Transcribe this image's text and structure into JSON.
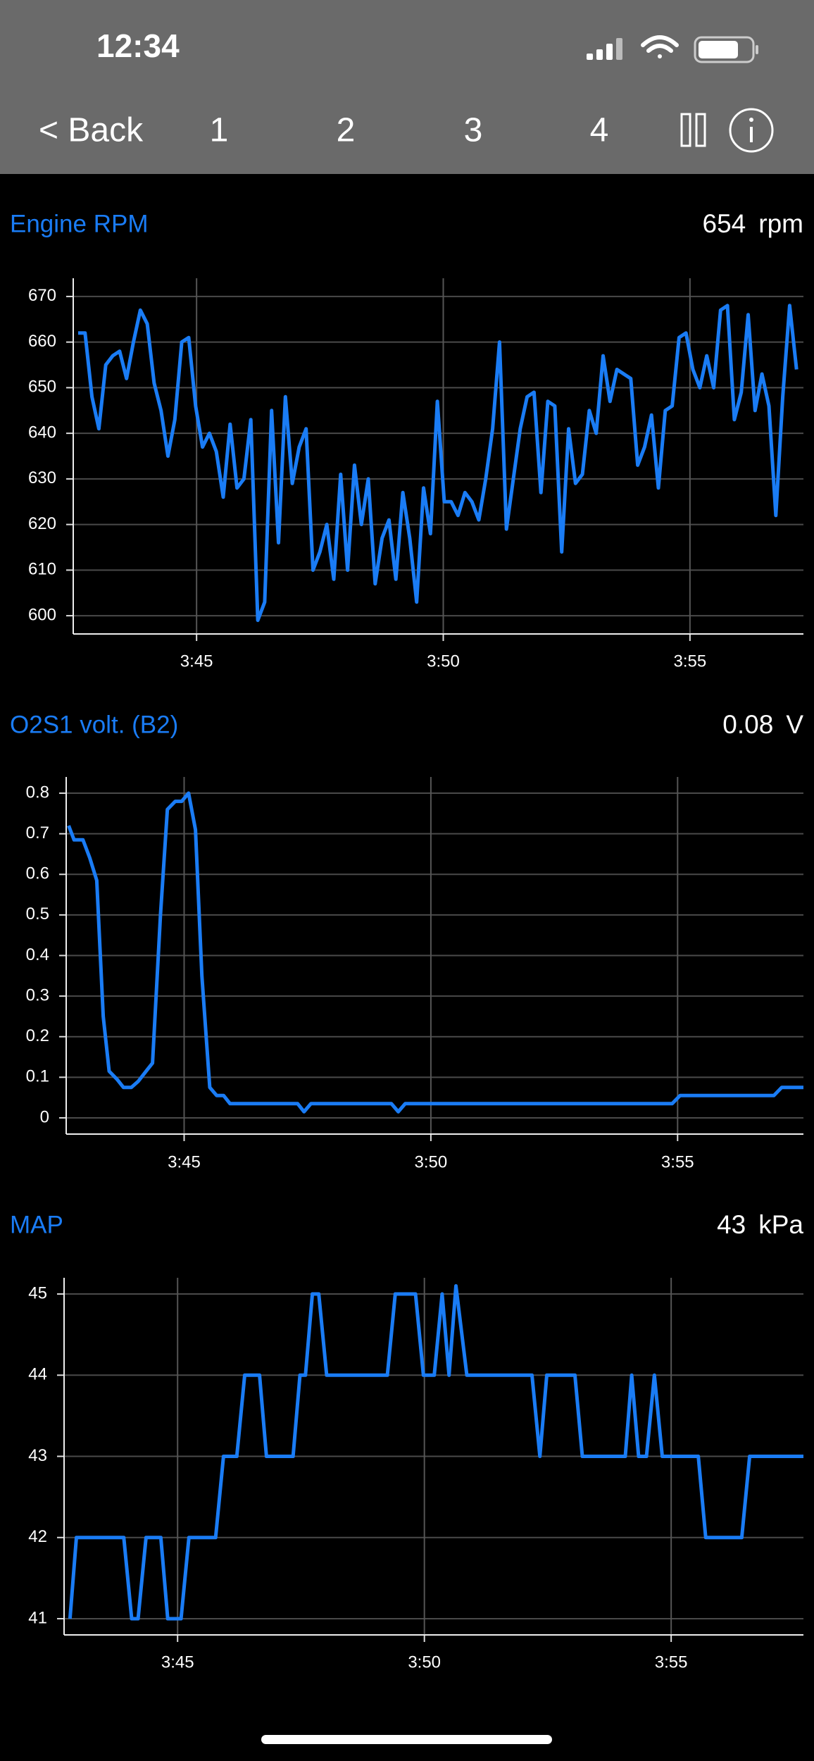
{
  "status_bar": {
    "time": "12:34"
  },
  "nav": {
    "back": "< Back",
    "tabs": [
      "1",
      "2",
      "3",
      "4"
    ]
  },
  "chart_data": [
    {
      "type": "line",
      "title": "Engine RPM",
      "current_value": 654,
      "unit": "rpm",
      "color": "#1a7cf5",
      "grid": true,
      "xlim": [
        42.5,
        57.3
      ],
      "xticks": [
        {
          "value": 45,
          "label": "3:45"
        },
        {
          "value": 50,
          "label": "3:50"
        },
        {
          "value": 55,
          "label": "3:55"
        }
      ],
      "ylim": [
        596,
        674
      ],
      "yticks": [
        600,
        610,
        620,
        630,
        640,
        650,
        660,
        670
      ],
      "x": [
        42.6,
        42.74,
        42.88,
        43.02,
        43.16,
        43.3,
        43.44,
        43.58,
        43.72,
        43.86,
        44.0,
        44.14,
        44.28,
        44.42,
        44.56,
        44.7,
        44.84,
        44.98,
        45.12,
        45.26,
        45.4,
        45.54,
        45.68,
        45.82,
        45.96,
        46.1,
        46.24,
        46.38,
        46.52,
        46.66,
        46.8,
        46.94,
        47.08,
        47.22,
        47.36,
        47.5,
        47.64,
        47.78,
        47.92,
        48.06,
        48.2,
        48.34,
        48.48,
        48.62,
        48.76,
        48.9,
        49.04,
        49.18,
        49.32,
        49.46,
        49.6,
        49.74,
        49.88,
        50.02,
        50.16,
        50.3,
        50.44,
        50.58,
        50.72,
        50.86,
        51.0,
        51.14,
        51.28,
        51.42,
        51.56,
        51.7,
        51.84,
        51.98,
        52.12,
        52.26,
        52.4,
        52.54,
        52.68,
        52.82,
        52.96,
        53.1,
        53.24,
        53.38,
        53.52,
        53.66,
        53.8,
        53.94,
        54.08,
        54.22,
        54.36,
        54.5,
        54.64,
        54.78,
        54.92,
        55.06,
        55.2,
        55.34,
        55.48,
        55.62,
        55.76,
        55.9,
        56.04,
        56.18,
        56.32,
        56.46,
        56.6,
        56.74,
        56.88,
        57.02,
        57.16
      ],
      "values": [
        662,
        662,
        648,
        641,
        655,
        657,
        658,
        652,
        660,
        667,
        664,
        651,
        645,
        635,
        643,
        660,
        661,
        646,
        637,
        640,
        636,
        626,
        642,
        628,
        630,
        643,
        599,
        603,
        645,
        616,
        648,
        629,
        637,
        641,
        610,
        614,
        620,
        608,
        631,
        610,
        633,
        620,
        630,
        607,
        617,
        621,
        608,
        627,
        617,
        603,
        628,
        618,
        647,
        625,
        625,
        622,
        627,
        625,
        621,
        630,
        641,
        660,
        619,
        630,
        641,
        648,
        649,
        627,
        647,
        646,
        614,
        641,
        629,
        631,
        645,
        640,
        657,
        647,
        654,
        653,
        652,
        633,
        637,
        644,
        628,
        645,
        646,
        661,
        662,
        654,
        650,
        657,
        650,
        667,
        668,
        643,
        649,
        666,
        645,
        653,
        646,
        622,
        648,
        668,
        654
      ]
    },
    {
      "type": "line",
      "title": "O2S1 volt. (B2)",
      "current_value": 0.08,
      "unit": "V",
      "color": "#1a7cf5",
      "grid": true,
      "xlim": [
        42.61,
        57.55
      ],
      "xticks": [
        {
          "value": 45,
          "label": "3:45"
        },
        {
          "value": 50,
          "label": "3:50"
        },
        {
          "value": 55,
          "label": "3:55"
        }
      ],
      "ylim": [
        -0.04,
        0.84
      ],
      "yticks": [
        0,
        0.1,
        0.2,
        0.3,
        0.4,
        0.5,
        0.6,
        0.7,
        0.8
      ],
      "x": [
        42.66,
        42.77,
        42.95,
        43.09,
        43.23,
        43.36,
        43.48,
        43.64,
        43.77,
        43.93,
        44.07,
        44.23,
        44.36,
        44.52,
        44.66,
        44.82,
        44.95,
        45.09,
        45.23,
        45.36,
        45.52,
        45.66,
        45.8,
        45.93,
        47.3,
        47.43,
        47.57,
        49.2,
        49.34,
        49.48,
        54.89,
        55.05,
        56.95,
        57.11,
        57.55
      ],
      "values": [
        0.72,
        0.685,
        0.685,
        0.64,
        0.585,
        0.25,
        0.115,
        0.095,
        0.075,
        0.075,
        0.09,
        0.115,
        0.135,
        0.5,
        0.76,
        0.78,
        0.78,
        0.8,
        0.71,
        0.35,
        0.075,
        0.055,
        0.055,
        0.035,
        0.035,
        0.015,
        0.035,
        0.035,
        0.015,
        0.035,
        0.035,
        0.055,
        0.055,
        0.075,
        0.075
      ]
    },
    {
      "type": "line",
      "title": "MAP",
      "current_value": 43,
      "unit": "kPa",
      "color": "#1a7cf5",
      "grid": true,
      "xlim": [
        42.7,
        57.68
      ],
      "xticks": [
        {
          "value": 45,
          "label": "3:45"
        },
        {
          "value": 50,
          "label": "3:50"
        },
        {
          "value": 55,
          "label": "3:55"
        }
      ],
      "ylim": [
        40.8,
        45.2
      ],
      "yticks": [
        41,
        42,
        43,
        44,
        45
      ],
      "x": [
        42.82,
        42.95,
        43.91,
        44.07,
        44.2,
        44.36,
        44.66,
        44.8,
        45.07,
        45.23,
        45.77,
        45.93,
        46.2,
        46.36,
        46.66,
        46.8,
        47.34,
        47.48,
        47.59,
        47.73,
        47.86,
        48.02,
        49.25,
        49.41,
        49.82,
        49.98,
        50.2,
        50.36,
        50.5,
        50.64,
        50.86,
        52.18,
        52.34,
        52.48,
        53.05,
        53.2,
        54.07,
        54.2,
        54.34,
        54.5,
        54.66,
        54.82,
        55.55,
        55.7,
        56.43,
        56.59,
        57.68
      ],
      "values": [
        41,
        42,
        42,
        41,
        41,
        42,
        42,
        41,
        41,
        42,
        42,
        43,
        43,
        44,
        44,
        43,
        43,
        44,
        44,
        45,
        45,
        44,
        44,
        45,
        45,
        44,
        44,
        45,
        44,
        45.1,
        44,
        44,
        43,
        44,
        44,
        43,
        43,
        44,
        43,
        43,
        44,
        43,
        43,
        42,
        42,
        43,
        43
      ]
    }
  ]
}
